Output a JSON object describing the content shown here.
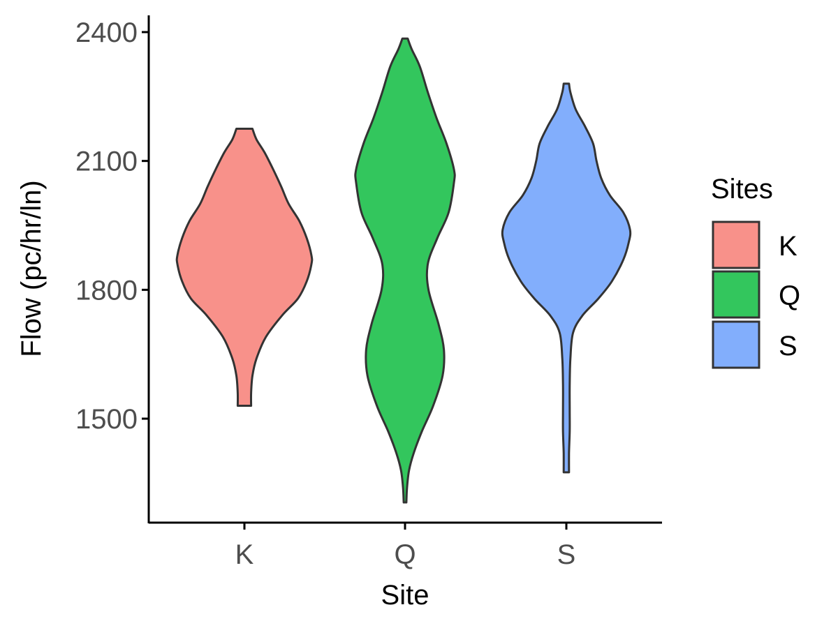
{
  "chart_data": {
    "type": "violin",
    "title": "",
    "xlabel": "Site",
    "ylabel": "Flow (pc/hr/ln)",
    "ylim": [
      1250,
      2430
    ],
    "yticks": [
      1500,
      1800,
      2100,
      2400
    ],
    "grid": false,
    "legend": {
      "title": "Sites",
      "position": "right"
    },
    "categories": [
      "K",
      "Q",
      "S"
    ],
    "series": [
      {
        "name": "K",
        "color": "#F8918A",
        "min": 1530,
        "max": 2175,
        "profile": [
          [
            1530,
            0.1
          ],
          [
            1560,
            0.1
          ],
          [
            1600,
            0.12
          ],
          [
            1640,
            0.18
          ],
          [
            1690,
            0.32
          ],
          [
            1740,
            0.56
          ],
          [
            1780,
            0.8
          ],
          [
            1820,
            0.93
          ],
          [
            1860,
            1.0
          ],
          [
            1880,
            1.0
          ],
          [
            1920,
            0.93
          ],
          [
            1960,
            0.82
          ],
          [
            2000,
            0.66
          ],
          [
            2040,
            0.55
          ],
          [
            2080,
            0.43
          ],
          [
            2120,
            0.3
          ],
          [
            2150,
            0.18
          ],
          [
            2175,
            0.12
          ]
        ]
      },
      {
        "name": "Q",
        "color": "#33C65D",
        "min": 1305,
        "max": 2385,
        "profile": [
          [
            1305,
            0.02
          ],
          [
            1340,
            0.03
          ],
          [
            1380,
            0.06
          ],
          [
            1420,
            0.13
          ],
          [
            1470,
            0.25
          ],
          [
            1530,
            0.42
          ],
          [
            1600,
            0.56
          ],
          [
            1660,
            0.58
          ],
          [
            1720,
            0.5
          ],
          [
            1800,
            0.35
          ],
          [
            1860,
            0.34
          ],
          [
            1920,
            0.48
          ],
          [
            1980,
            0.65
          ],
          [
            2050,
            0.73
          ],
          [
            2080,
            0.73
          ],
          [
            2140,
            0.62
          ],
          [
            2200,
            0.47
          ],
          [
            2260,
            0.34
          ],
          [
            2320,
            0.22
          ],
          [
            2360,
            0.1
          ],
          [
            2385,
            0.04
          ]
        ]
      },
      {
        "name": "S",
        "color": "#82AEFC",
        "min": 1375,
        "max": 2280,
        "profile": [
          [
            1375,
            0.04
          ],
          [
            1420,
            0.04
          ],
          [
            1470,
            0.05
          ],
          [
            1520,
            0.05
          ],
          [
            1580,
            0.05
          ],
          [
            1640,
            0.06
          ],
          [
            1700,
            0.1
          ],
          [
            1740,
            0.24
          ],
          [
            1780,
            0.48
          ],
          [
            1820,
            0.68
          ],
          [
            1870,
            0.85
          ],
          [
            1910,
            0.93
          ],
          [
            1940,
            0.95
          ],
          [
            1980,
            0.85
          ],
          [
            2020,
            0.65
          ],
          [
            2060,
            0.52
          ],
          [
            2100,
            0.45
          ],
          [
            2140,
            0.4
          ],
          [
            2180,
            0.28
          ],
          [
            2220,
            0.14
          ],
          [
            2260,
            0.06
          ],
          [
            2280,
            0.04
          ]
        ]
      }
    ]
  }
}
